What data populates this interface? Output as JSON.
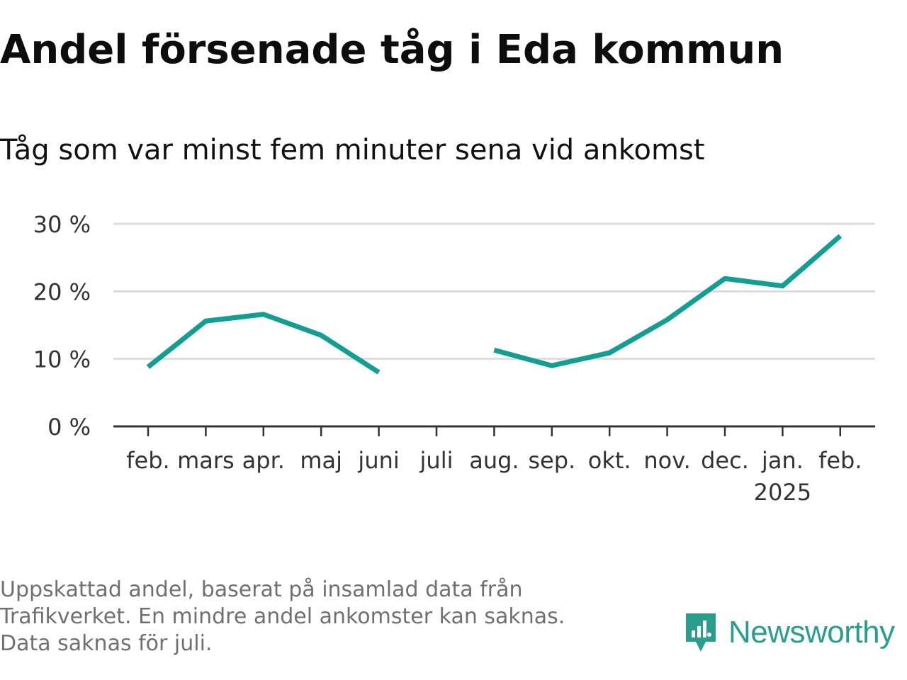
{
  "header": {
    "title": "Andel försenade tåg i Eda kommun",
    "subtitle": "Tåg som var minst fem minuter sena vid ankomst"
  },
  "chart_data": {
    "type": "line",
    "categories": [
      "feb.",
      "mars",
      "apr.",
      "maj",
      "juni",
      "juli",
      "aug.",
      "sep.",
      "okt.",
      "nov.",
      "dec.",
      "jan.",
      "feb."
    ],
    "year_label": {
      "text": "2025",
      "under_category_index": 11
    },
    "series": [
      {
        "name": "",
        "values": [
          8.8,
          15.6,
          16.6,
          13.5,
          8.0,
          null,
          11.3,
          9.0,
          10.9,
          15.8,
          21.9,
          20.8,
          28.2
        ]
      }
    ],
    "yticks": [
      0,
      10,
      20,
      30
    ],
    "ytick_labels": [
      "0 %",
      "10 %",
      "20 %",
      "30 %"
    ],
    "ylim": [
      0,
      30
    ],
    "grid": true,
    "xlabel": "",
    "ylabel": "",
    "colors": {
      "line": "#139e93",
      "grid": "#dcdcdc",
      "axis": "#333333",
      "label": "#333333"
    }
  },
  "footer": {
    "note_line1": "Uppskattad andel, baserat på insamlad data från Trafikverket. En mindre andel ankomster kan saknas.",
    "note_line2": "Data saknas för juli.",
    "brand_name": "Newsworthy",
    "brand_icon": "newsworthy-logo-icon",
    "brand_color": "#2a9d8f"
  }
}
